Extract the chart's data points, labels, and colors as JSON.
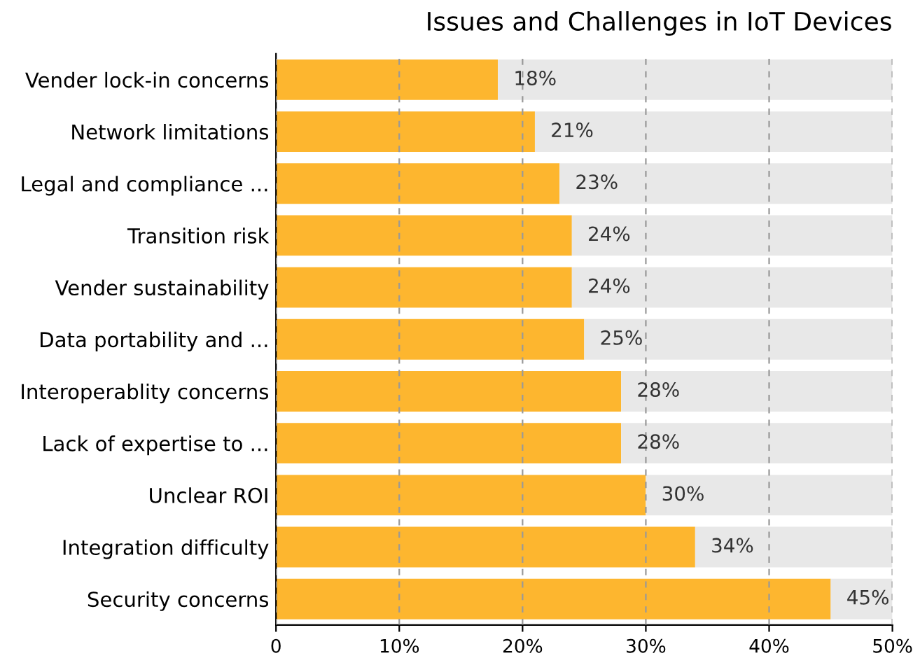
{
  "chart_data": {
    "type": "bar",
    "orientation": "horizontal",
    "stacked": true,
    "title": "Issues and Challenges in IoT Devices",
    "categories": [
      "Vender lock-in concerns",
      "Network limitations",
      "Legal and compliance ...",
      "Transition risk",
      "Vender sustainability",
      "Data portability and ...",
      "Interoperablity concerns",
      "Lack of expertise to ...",
      "Unclear ROI",
      "Integration difficulty",
      "Security concerns"
    ],
    "series": [
      {
        "color": "#fdb62f",
        "values": [
          18,
          21,
          23,
          24,
          24,
          25,
          28,
          28,
          30,
          34,
          45
        ],
        "value_labels": [
          "18%",
          "21%",
          "23%",
          "24%",
          "24%",
          "25%",
          "28%",
          "28%",
          "30%",
          "34%",
          "45%"
        ]
      },
      {
        "color": "#e8e8e8",
        "values": [
          32,
          29,
          27,
          26,
          26,
          25,
          22,
          22,
          20,
          16,
          5
        ]
      }
    ],
    "xlim": [
      0,
      50
    ],
    "xticks": [
      0,
      {
        "value": 10,
        "label": "10%"
      },
      {
        "value": 20,
        "label": "20%"
      },
      {
        "value": 30,
        "label": "30%"
      },
      {
        "value": 40,
        "label": "40%"
      },
      {
        "value": 50,
        "label": "50%"
      }
    ],
    "grid": "x",
    "legend": false
  }
}
